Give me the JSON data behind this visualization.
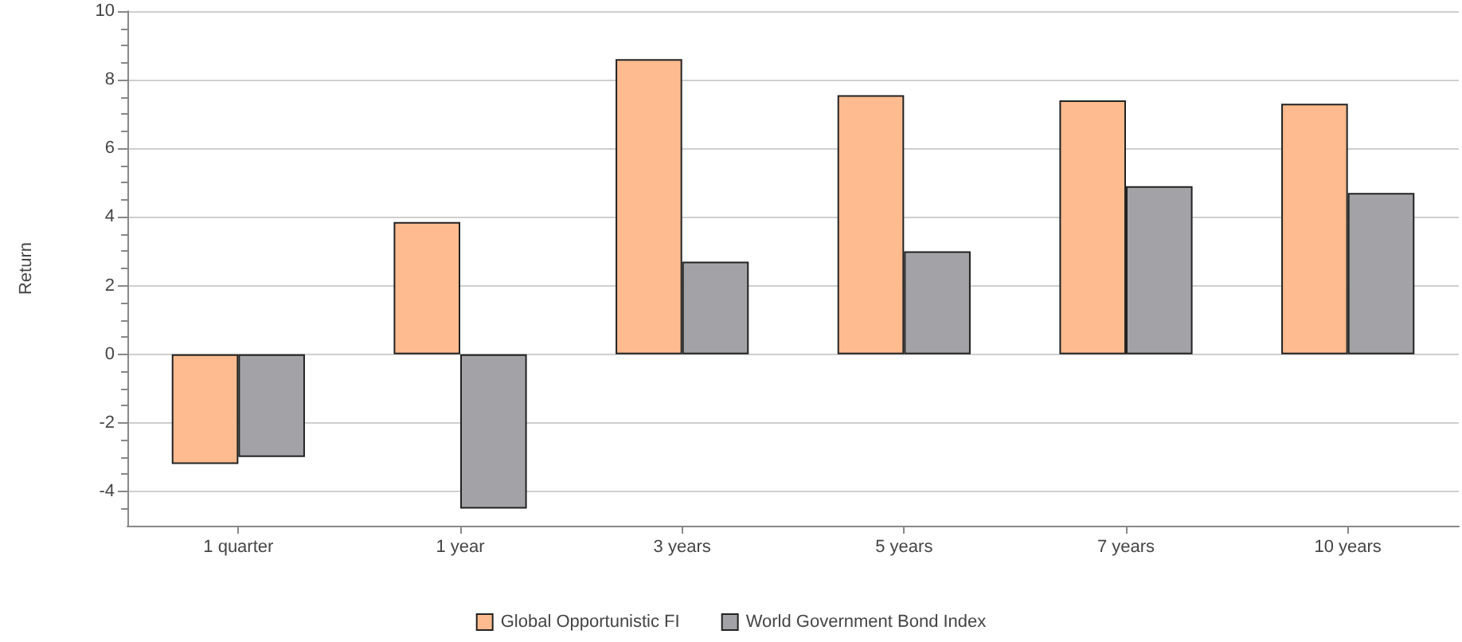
{
  "chart_data": {
    "type": "bar",
    "ylabel": "Return",
    "categories": [
      "1 quarter",
      "1 year",
      "3 years",
      "5 years",
      "7 years",
      "10 years"
    ],
    "series": [
      {
        "name": "Global Opportunistic FI",
        "color": "#fdbb8f",
        "values": [
          -3.2,
          3.85,
          8.6,
          7.55,
          7.4,
          7.3
        ]
      },
      {
        "name": "World Government Bond Index",
        "color": "#a3a2a7",
        "values": [
          -3.0,
          -4.5,
          2.7,
          3.0,
          4.9,
          4.7
        ]
      }
    ],
    "ylim": [
      -5,
      10
    ],
    "yticks": [
      -4,
      {
        "value": -4.5,
        "label": null
      },
      {
        "value": -3.5,
        "label": null
      },
      {
        "value": -3,
        "label": null
      },
      {
        "value": -2.5,
        "label": null
      },
      -2,
      {
        "value": -1.5,
        "label": null
      },
      {
        "value": -1,
        "label": null
      },
      {
        "value": -0.5,
        "label": null
      },
      0,
      {
        "value": 0.5,
        "label": null
      },
      {
        "value": 1,
        "label": null
      },
      {
        "value": 1.5,
        "label": null
      },
      2,
      {
        "value": 2.5,
        "label": null
      },
      {
        "value": 3,
        "label": null
      },
      {
        "value": 3.5,
        "label": null
      },
      4,
      {
        "value": 4.5,
        "label": null
      },
      {
        "value": 5,
        "label": null
      },
      {
        "value": 5.5,
        "label": null
      },
      6,
      {
        "value": 6.5,
        "label": null
      },
      {
        "value": 7,
        "label": null
      },
      {
        "value": 7.5,
        "label": null
      },
      8,
      {
        "value": 8.5,
        "label": null
      },
      {
        "value": 9,
        "label": null
      },
      {
        "value": 9.5,
        "label": null
      },
      10
    ],
    "grid": "y",
    "legend": "bottom"
  }
}
